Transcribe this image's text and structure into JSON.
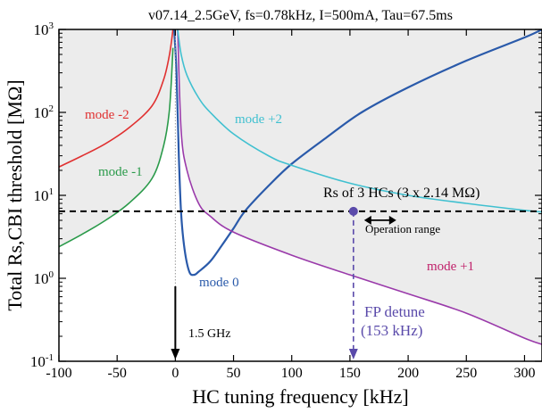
{
  "chart_data": {
    "type": "line",
    "title": "v07.14_2.5GeV, fs=0.78kHz, I=500mA, Tau=67.5ms",
    "xlabel": "HC tuning frequency [kHz]",
    "ylabel": "Total Rs,CBI threshold [MΩ]",
    "xlim": [
      -100,
      315
    ],
    "ylim": [
      0.1,
      1000
    ],
    "yscale": "log",
    "x_ticks": [
      -100,
      -50,
      0,
      50,
      100,
      150,
      200,
      250,
      300
    ],
    "x_tick_labels": [
      "-100",
      "-50",
      "0",
      "50",
      "100",
      "150",
      "200",
      "250",
      "300"
    ],
    "y_ticks": [
      0.1,
      1,
      10,
      100,
      1000
    ],
    "y_tick_labels": [
      {
        "base": "10",
        "exp": "-1"
      },
      {
        "base": "10",
        "exp": "0"
      },
      {
        "base": "10",
        "exp": "1"
      },
      {
        "base": "10",
        "exp": "2"
      },
      {
        "base": "10",
        "exp": "3"
      }
    ],
    "series": [
      {
        "name": "mode -2",
        "color": "#e03030",
        "x": [
          -100,
          -80,
          -60,
          -40,
          -20,
          -10,
          -5,
          -2
        ],
        "y": [
          22,
          30,
          42,
          65,
          120,
          250,
          500,
          1000
        ]
      },
      {
        "name": "mode -1",
        "color": "#2a9a4a",
        "x": [
          -100,
          -80,
          -60,
          -40,
          -20,
          -10,
          -5,
          -2
        ],
        "y": [
          2.4,
          3.4,
          5,
          8,
          16,
          40,
          110,
          600
        ]
      },
      {
        "name": "mode 0",
        "color": "#2a5aaa",
        "x": [
          -1,
          1,
          3,
          5,
          8,
          12,
          16,
          20,
          30,
          40,
          50,
          60,
          80,
          100,
          130,
          160,
          200,
          250,
          300,
          315
        ],
        "y": [
          1000,
          300,
          30,
          6,
          2.2,
          1.2,
          1.1,
          1.2,
          1.6,
          2.5,
          4,
          6.5,
          13,
          24,
          50,
          100,
          200,
          420,
          800,
          1000
        ]
      },
      {
        "name": "mode +1",
        "color": "#9a3aaa",
        "x": [
          2,
          5,
          10,
          20,
          30,
          50,
          100,
          150,
          200,
          250,
          300,
          315
        ],
        "y": [
          1000,
          60,
          20,
          8,
          5.6,
          3.6,
          1.9,
          1.1,
          0.65,
          0.38,
          0.19,
          0.16
        ]
      },
      {
        "name": "mode +2",
        "color": "#40c0d0",
        "x": [
          2,
          5,
          10,
          20,
          30,
          50,
          80,
          100,
          150,
          200,
          250,
          300,
          315
        ],
        "y": [
          1000,
          500,
          280,
          150,
          100,
          55,
          30,
          23,
          14,
          10,
          8,
          6.6,
          6.3
        ]
      }
    ],
    "threshold": {
      "label": "Rs of 3 HCs (3 x 2.14 MΩ)",
      "value": 6.42,
      "color": "#000000"
    },
    "operating_point": {
      "x": 153,
      "y": 6.42,
      "color": "#5a4aaa"
    },
    "annotations": {
      "operation_range": "Operation range",
      "fp_detune_line1": "FP detune",
      "fp_detune_line2": "(153 kHz)",
      "rf_frequency": "1.5 GHz"
    },
    "colors": {
      "unstable_region_fill": "#ececec",
      "fp_annotation": "#5a4aaa",
      "mode_plus1_label": "#c0206a"
    },
    "grid": false,
    "legend": "none"
  }
}
